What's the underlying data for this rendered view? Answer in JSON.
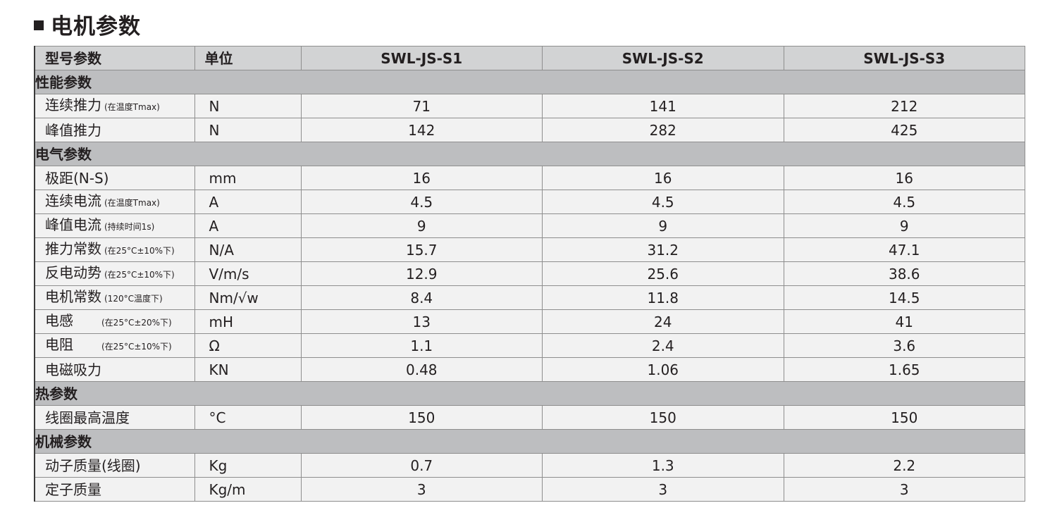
{
  "title": "电机参数",
  "header": {
    "name": "型号参数",
    "unit": "单位",
    "models": [
      "SWL-JS-S1",
      "SWL-JS-S2",
      "SWL-JS-S3"
    ]
  },
  "sections": [
    {
      "label": "性能参数",
      "rows": [
        {
          "name": "连续推力",
          "note": "(在温度Tmax)",
          "unit": "N",
          "values": [
            "71",
            "141",
            "212"
          ]
        },
        {
          "name": "峰值推力",
          "note": "",
          "unit": "N",
          "values": [
            "142",
            "282",
            "425"
          ]
        }
      ]
    },
    {
      "label": "电气参数",
      "rows": [
        {
          "name": "极距(N-S)",
          "note": "",
          "unit": "mm",
          "values": [
            "16",
            "16",
            "16"
          ]
        },
        {
          "name": "连续电流",
          "note": "(在温度Tmax)",
          "unit": "A",
          "values": [
            "4.5",
            "4.5",
            "4.5"
          ]
        },
        {
          "name": "峰值电流",
          "note": "(持续时间1s)",
          "unit": "A",
          "values": [
            "9",
            "9",
            "9"
          ]
        },
        {
          "name": "推力常数",
          "note": "(在25°C±10%下)",
          "unit": "N/A",
          "values": [
            "15.7",
            "31.2",
            "47.1"
          ]
        },
        {
          "name": "反电动势",
          "note": "(在25°C±10%下)",
          "unit": "V/m/s",
          "values": [
            "12.9",
            "25.6",
            "38.6"
          ]
        },
        {
          "name": "电机常数",
          "note": "(120°C温度下)",
          "unit": "Nm/√w",
          "values": [
            "8.4",
            "11.8",
            "14.5"
          ]
        },
        {
          "name": "电感",
          "note": "(在25°C±20%下)",
          "unit": "mH",
          "values": [
            "13",
            "24",
            "41"
          ]
        },
        {
          "name": "电阻",
          "note": "(在25°C±10%下)",
          "unit": "Ω",
          "values": [
            "1.1",
            "2.4",
            "3.6"
          ]
        },
        {
          "name": "电磁吸力",
          "note": "",
          "unit": "KN",
          "values": [
            "0.48",
            "1.06",
            "1.65"
          ]
        }
      ]
    },
    {
      "label": "热参数",
      "rows": [
        {
          "name": "线圈最高温度",
          "note": "",
          "unit": "°C",
          "values": [
            "150",
            "150",
            "150"
          ]
        }
      ]
    },
    {
      "label": "机械参数",
      "rows": [
        {
          "name": "动子质量(线圈)",
          "note": "",
          "unit": "Kg",
          "values": [
            "0.7",
            "1.3",
            "2.2"
          ]
        },
        {
          "name": "定子质量",
          "note": "",
          "unit": "Kg/m",
          "values": [
            "3",
            "3",
            "3"
          ]
        }
      ]
    }
  ]
}
